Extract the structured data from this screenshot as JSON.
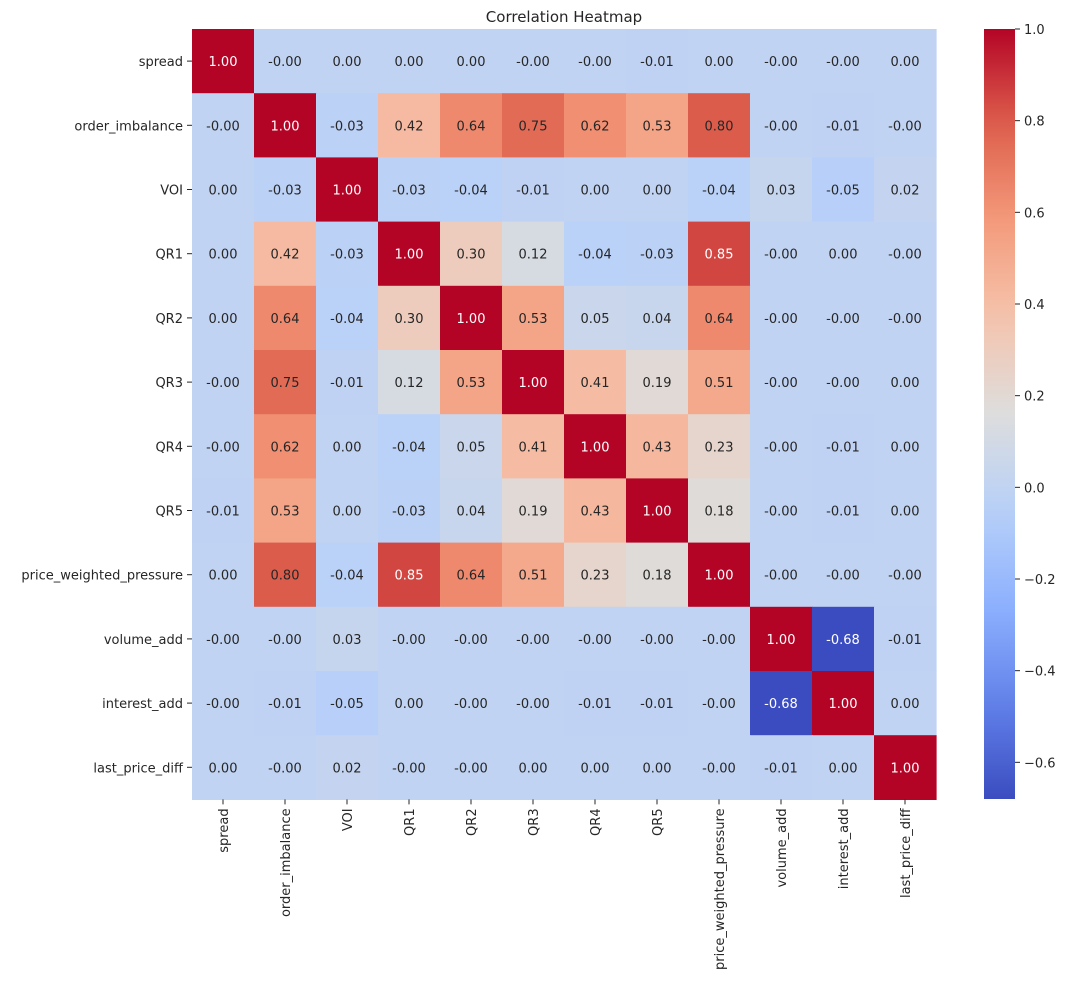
{
  "chart_data": {
    "type": "heatmap",
    "title": "Correlation Heatmap",
    "xlabel": "",
    "ylabel": "",
    "colormap": "coolwarm",
    "vmin": -0.68,
    "vmax": 1.0,
    "labels": [
      "spread",
      "order_imbalance",
      "VOI",
      "QR1",
      "QR2",
      "QR3",
      "QR4",
      "QR5",
      "price_weighted_pressure",
      "volume_add",
      "interest_add",
      "last_price_diff"
    ],
    "values": [
      [
        1.0,
        -0.0,
        0.0,
        0.0,
        0.0,
        -0.0,
        -0.0,
        -0.01,
        0.0,
        -0.0,
        -0.0,
        0.0
      ],
      [
        -0.0,
        1.0,
        -0.03,
        0.42,
        0.64,
        0.75,
        0.62,
        0.53,
        0.8,
        -0.0,
        -0.01,
        -0.0
      ],
      [
        0.0,
        -0.03,
        1.0,
        -0.03,
        -0.04,
        -0.01,
        0.0,
        0.0,
        -0.04,
        0.03,
        -0.05,
        0.02
      ],
      [
        0.0,
        0.42,
        -0.03,
        1.0,
        0.3,
        0.12,
        -0.04,
        -0.03,
        0.85,
        -0.0,
        0.0,
        -0.0
      ],
      [
        0.0,
        0.64,
        -0.04,
        0.3,
        1.0,
        0.53,
        0.05,
        0.04,
        0.64,
        -0.0,
        -0.0,
        -0.0
      ],
      [
        -0.0,
        0.75,
        -0.01,
        0.12,
        0.53,
        1.0,
        0.41,
        0.19,
        0.51,
        -0.0,
        -0.0,
        0.0
      ],
      [
        -0.0,
        0.62,
        0.0,
        -0.04,
        0.05,
        0.41,
        1.0,
        0.43,
        0.23,
        -0.0,
        -0.01,
        0.0
      ],
      [
        -0.01,
        0.53,
        0.0,
        -0.03,
        0.04,
        0.19,
        0.43,
        1.0,
        0.18,
        -0.0,
        -0.01,
        0.0
      ],
      [
        0.0,
        0.8,
        -0.04,
        0.85,
        0.64,
        0.51,
        0.23,
        0.18,
        1.0,
        -0.0,
        -0.0,
        -0.0
      ],
      [
        -0.0,
        -0.0,
        0.03,
        -0.0,
        -0.0,
        -0.0,
        -0.0,
        -0.0,
        -0.0,
        1.0,
        -0.68,
        -0.01
      ],
      [
        -0.0,
        -0.01,
        -0.05,
        0.0,
        -0.0,
        -0.0,
        -0.01,
        -0.01,
        -0.0,
        -0.68,
        1.0,
        0.0
      ],
      [
        0.0,
        -0.0,
        0.02,
        -0.0,
        -0.0,
        0.0,
        0.0,
        0.0,
        -0.0,
        -0.01,
        0.0,
        1.0
      ]
    ],
    "annotations": [
      [
        "1.00",
        "-0.00",
        "0.00",
        "0.00",
        "0.00",
        "-0.00",
        "-0.00",
        "-0.01",
        "0.00",
        "-0.00",
        "-0.00",
        "0.00"
      ],
      [
        "-0.00",
        "1.00",
        "-0.03",
        "0.42",
        "0.64",
        "0.75",
        "0.62",
        "0.53",
        "0.80",
        "-0.00",
        "-0.01",
        "-0.00"
      ],
      [
        "0.00",
        "-0.03",
        "1.00",
        "-0.03",
        "-0.04",
        "-0.01",
        "0.00",
        "0.00",
        "-0.04",
        "0.03",
        "-0.05",
        "0.02"
      ],
      [
        "0.00",
        "0.42",
        "-0.03",
        "1.00",
        "0.30",
        "0.12",
        "-0.04",
        "-0.03",
        "0.85",
        "-0.00",
        "0.00",
        "-0.00"
      ],
      [
        "0.00",
        "0.64",
        "-0.04",
        "0.30",
        "1.00",
        "0.53",
        "0.05",
        "0.04",
        "0.64",
        "-0.00",
        "-0.00",
        "-0.00"
      ],
      [
        "-0.00",
        "0.75",
        "-0.01",
        "0.12",
        "0.53",
        "1.00",
        "0.41",
        "0.19",
        "0.51",
        "-0.00",
        "-0.00",
        "0.00"
      ],
      [
        "-0.00",
        "0.62",
        "0.00",
        "-0.04",
        "0.05",
        "0.41",
        "1.00",
        "0.43",
        "0.23",
        "-0.00",
        "-0.01",
        "0.00"
      ],
      [
        "-0.01",
        "0.53",
        "0.00",
        "-0.03",
        "0.04",
        "0.19",
        "0.43",
        "1.00",
        "0.18",
        "-0.00",
        "-0.01",
        "0.00"
      ],
      [
        "0.00",
        "0.80",
        "-0.04",
        "0.85",
        "0.64",
        "0.51",
        "0.23",
        "0.18",
        "1.00",
        "-0.00",
        "-0.00",
        "-0.00"
      ],
      [
        "-0.00",
        "-0.00",
        "0.03",
        "-0.00",
        "-0.00",
        "-0.00",
        "-0.00",
        "-0.00",
        "-0.00",
        "1.00",
        "-0.68",
        "-0.01"
      ],
      [
        "-0.00",
        "-0.01",
        "-0.05",
        "0.00",
        "-0.00",
        "-0.00",
        "-0.01",
        "-0.01",
        "-0.00",
        "-0.68",
        "1.00",
        "0.00"
      ],
      [
        "0.00",
        "-0.00",
        "0.02",
        "-0.00",
        "-0.00",
        "0.00",
        "0.00",
        "0.00",
        "-0.00",
        "-0.01",
        "0.00",
        "1.00"
      ]
    ],
    "colorbar": {
      "ticks": [
        1.0,
        0.8,
        0.6,
        0.4,
        0.2,
        0.0,
        -0.2,
        -0.4,
        -0.6
      ],
      "tick_labels": [
        "1.0",
        "0.8",
        "0.6",
        "0.4",
        "0.2",
        "0.0",
        "−0.2",
        "−0.4",
        "−0.6"
      ]
    }
  }
}
